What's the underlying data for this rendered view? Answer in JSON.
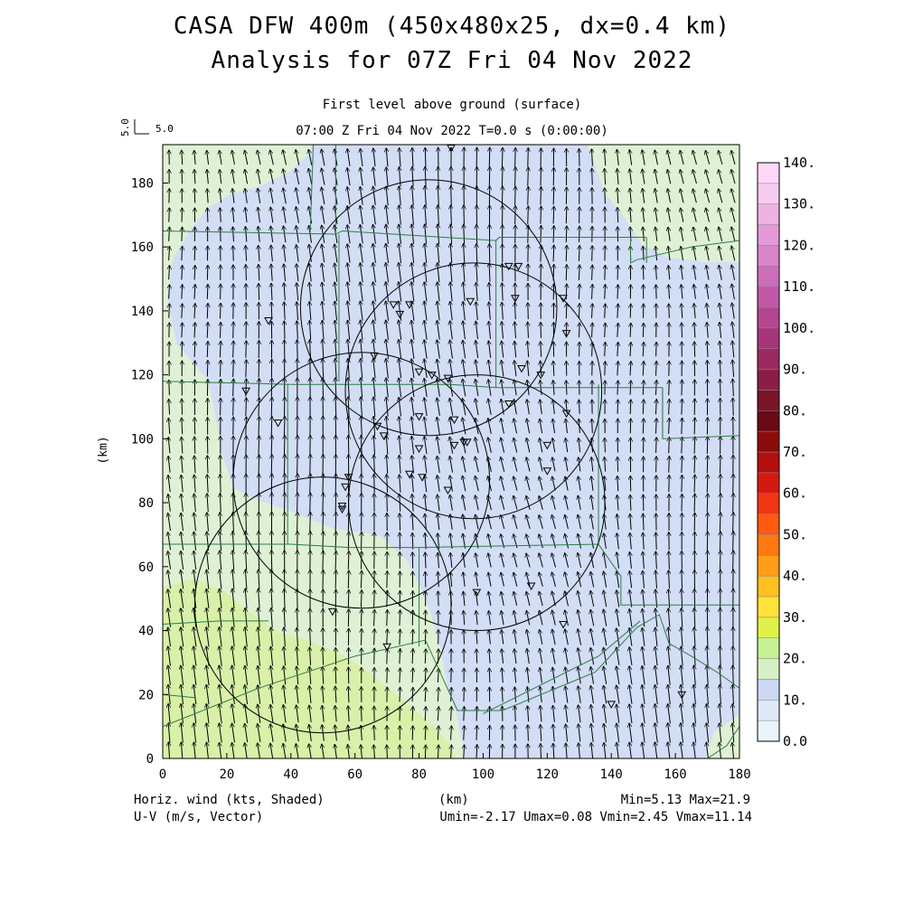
{
  "header": {
    "title_line1": "CASA DFW 400m (450x480x25, dx=0.4 km)",
    "title_line2": "Analysis for 07Z Fri 04 Nov 2022",
    "level_label": "First level above ground (surface)",
    "time_label": "07:00 Z Fri 04 Nov 2022    T=0.0 s (0:00:00)",
    "ref_vector_label": "5.0"
  },
  "footer": {
    "left_line1": "Horiz. wind (kts, Shaded)",
    "left_line2": "U-V (m/s, Vector)",
    "center": "(km)",
    "right_line1": "Min=5.13 Max=21.9",
    "right_line2": "Umin=-2.17 Umax=0.08 Vmin=2.45 Vmax=11.14"
  },
  "chart_data": {
    "type": "heatmap",
    "title": "CASA DFW 400m (450x480x25, dx=0.4 km)",
    "xlabel": "",
    "ylabel": "(km)",
    "xlim": [
      0,
      180
    ],
    "ylim": [
      0,
      192
    ],
    "x_ticks": [
      0,
      20,
      40,
      60,
      80,
      100,
      120,
      140,
      160,
      180
    ],
    "y_ticks": [
      0,
      20,
      40,
      60,
      80,
      100,
      120,
      140,
      160,
      180
    ],
    "colorbar": {
      "ticks": [
        "0.0",
        "10.",
        "20.",
        "30.",
        "40.",
        "50.",
        "60.",
        "70.",
        "80.",
        "90.",
        "100.",
        "110.",
        "120.",
        "130.",
        "140."
      ],
      "colors": [
        "#e8f6fb",
        "#dfe9f8",
        "#cdd8f4",
        "#d6f2c4",
        "#c8f094",
        "#e0f248",
        "#ffe23a",
        "#ffc020",
        "#ff9e18",
        "#ff7812",
        "#ff5a10",
        "#f03612",
        "#d41a10",
        "#b40e0e",
        "#8c0c0c",
        "#6a0a16",
        "#781628",
        "#8c1e46",
        "#9a2a60",
        "#a8347a",
        "#b44690",
        "#c058a6",
        "#cc6eba",
        "#d884ca",
        "#e49ad8",
        "#eeb2e4",
        "#f7cbf0",
        "#ffd8f8"
      ]
    },
    "wind_field": {
      "min": 5.13,
      "max": 21.9,
      "umin": -2.17,
      "umax": 0.08,
      "vmin": 2.45,
      "vmax": 11.14
    },
    "fill_colors": {
      "low": "#d2ddf6",
      "mid": "#dff1d4",
      "high": "#d8f0a8"
    },
    "radars": [
      {
        "x": 83,
        "y": 141,
        "r": 40
      },
      {
        "x": 62,
        "y": 87,
        "r": 40
      },
      {
        "x": 97,
        "y": 115,
        "r": 40
      },
      {
        "x": 98,
        "y": 80,
        "r": 40
      },
      {
        "x": 50,
        "y": 48,
        "r": 40
      }
    ],
    "stations": [
      [
        90,
        191
      ],
      [
        108,
        154
      ],
      [
        111,
        154
      ],
      [
        110,
        144
      ],
      [
        96,
        143
      ],
      [
        72,
        142
      ],
      [
        77,
        142
      ],
      [
        74,
        139
      ],
      [
        125,
        144
      ],
      [
        126,
        133
      ],
      [
        33,
        137
      ],
      [
        66,
        126
      ],
      [
        80,
        121
      ],
      [
        84,
        120
      ],
      [
        89,
        119
      ],
      [
        112,
        122
      ],
      [
        118,
        120
      ],
      [
        80,
        107
      ],
      [
        91,
        106
      ],
      [
        108,
        111
      ],
      [
        126,
        108
      ],
      [
        26,
        115
      ],
      [
        36,
        105
      ],
      [
        67,
        104
      ],
      [
        69,
        101
      ],
      [
        80,
        97
      ],
      [
        91,
        98
      ],
      [
        94,
        99
      ],
      [
        95,
        99
      ],
      [
        120,
        98
      ],
      [
        120,
        90
      ],
      [
        58,
        88
      ],
      [
        57,
        85
      ],
      [
        56,
        78
      ],
      [
        56,
        79
      ],
      [
        77,
        89
      ],
      [
        81,
        88
      ],
      [
        89,
        84
      ],
      [
        53,
        46
      ],
      [
        70,
        35
      ],
      [
        98,
        52
      ],
      [
        115,
        54
      ],
      [
        125,
        42
      ],
      [
        140,
        17
      ],
      [
        162,
        20
      ]
    ]
  }
}
